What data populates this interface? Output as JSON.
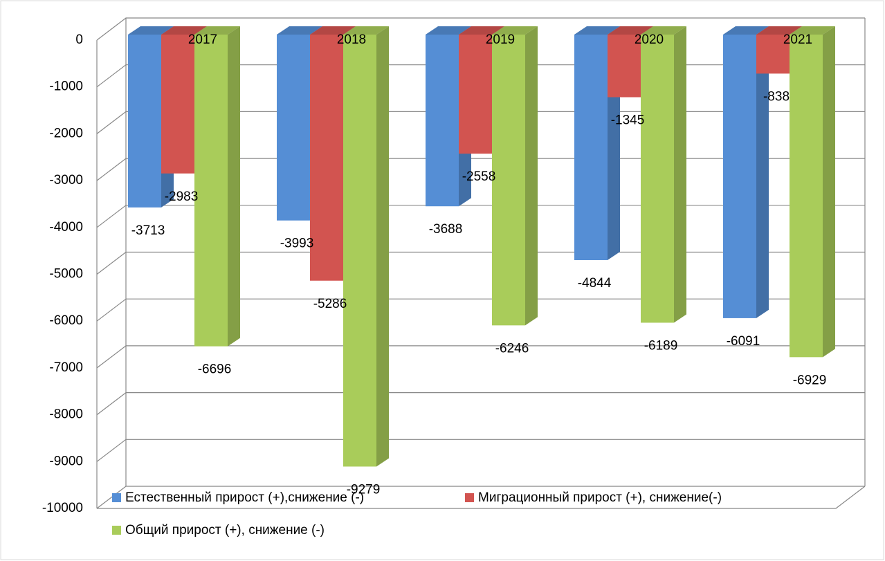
{
  "chart_data": {
    "type": "bar3d",
    "categories": [
      "2017",
      "2018",
      "2019",
      "2020",
      "2021"
    ],
    "series": [
      {
        "name": "Естественный прирост (+),снижение (-)",
        "color": "#558ed5",
        "values": [
          -3713,
          -3993,
          -3688,
          -4844,
          -6091
        ]
      },
      {
        "name": "Миграционный прирост (+), снижение(-)",
        "color": "#d25450",
        "values": [
          -2983,
          -5286,
          -2558,
          -1345,
          -838
        ]
      },
      {
        "name": "Общий прирост (+), снижение (-)",
        "color": "#a9cc5a",
        "values": [
          -6696,
          -9279,
          -6246,
          -6189,
          -6929
        ]
      }
    ],
    "ylim": [
      -10000,
      0
    ],
    "yticks": [
      0,
      -1000,
      -2000,
      -3000,
      -4000,
      -5000,
      -6000,
      -7000,
      -8000,
      -9000,
      -10000
    ],
    "grid": true
  }
}
